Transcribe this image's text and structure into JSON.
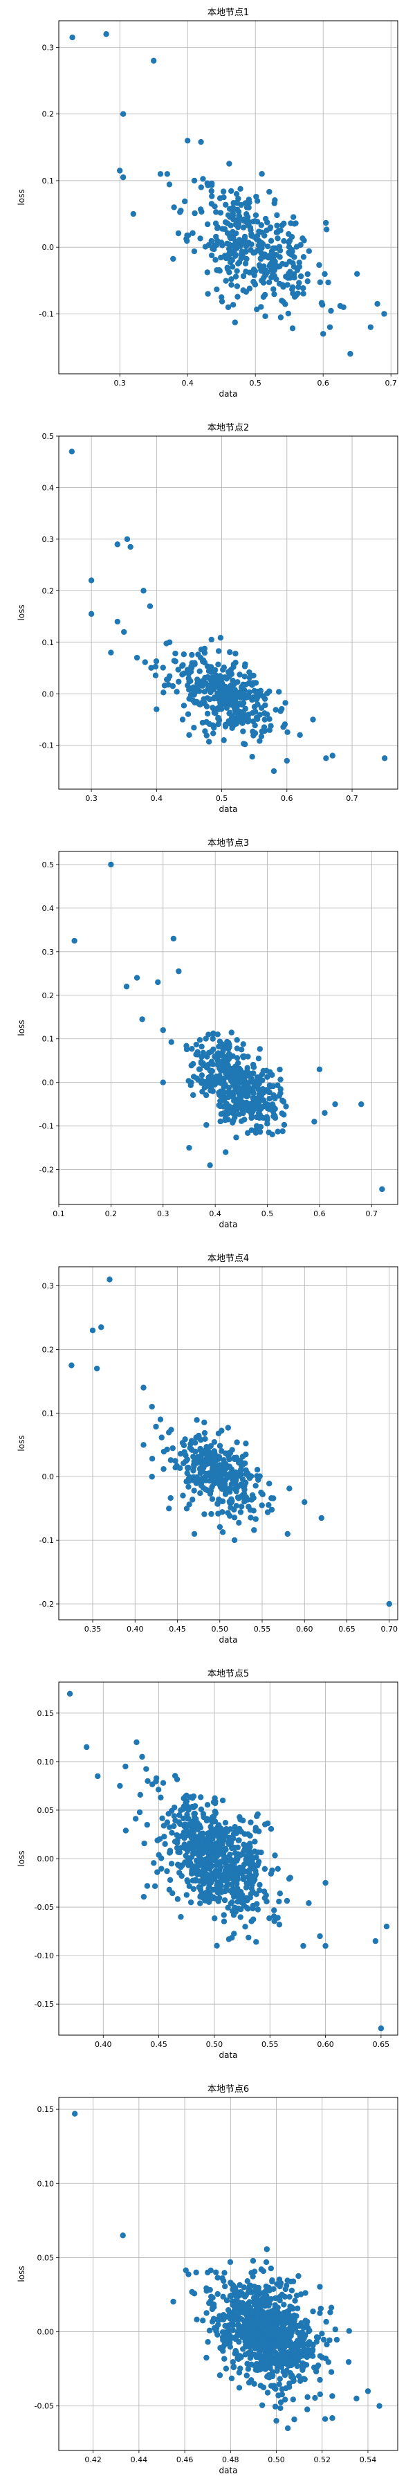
{
  "chart_data": [
    {
      "type": "scatter",
      "title": "本地节点1",
      "xlabel": "data",
      "ylabel": "loss",
      "xlim": [
        0.21,
        0.71
      ],
      "ylim": [
        -0.19,
        0.34
      ],
      "xticks": [
        0.3,
        0.4,
        0.5,
        0.6,
        0.7
      ],
      "yticks": [
        -0.1,
        0.0,
        0.1,
        0.2,
        0.3
      ],
      "tick_decimals": 1,
      "grid": true,
      "color": "#1f77b4",
      "outliers": [
        [
          0.23,
          0.315
        ],
        [
          0.28,
          0.32
        ],
        [
          0.35,
          0.28
        ],
        [
          0.305,
          0.2
        ],
        [
          0.4,
          0.16
        ],
        [
          0.3,
          0.115
        ],
        [
          0.305,
          0.105
        ],
        [
          0.32,
          0.05
        ],
        [
          0.36,
          0.11
        ],
        [
          0.37,
          0.11
        ],
        [
          0.41,
          0.1
        ],
        [
          0.42,
          0.09
        ],
        [
          0.38,
          0.06
        ],
        [
          0.39,
          0.055
        ],
        [
          0.43,
          -0.07
        ],
        [
          0.45,
          -0.075
        ],
        [
          0.46,
          -0.09
        ],
        [
          0.6,
          -0.13
        ],
        [
          0.61,
          -0.12
        ],
        [
          0.64,
          -0.16
        ],
        [
          0.68,
          -0.085
        ],
        [
          0.69,
          -0.1
        ],
        [
          0.67,
          -0.12
        ],
        [
          0.63,
          -0.09
        ],
        [
          0.65,
          -0.04
        ]
      ],
      "cluster": {
        "count": 360,
        "cx": 0.5,
        "cy": 0.0,
        "sx": 0.045,
        "sy": 0.042,
        "slope": -0.45,
        "seed": 11
      }
    },
    {
      "type": "scatter",
      "title": "本地节点2",
      "xlabel": "data",
      "ylabel": "loss",
      "xlim": [
        0.25,
        0.77
      ],
      "ylim": [
        -0.185,
        0.5
      ],
      "xticks": [
        0.3,
        0.4,
        0.5,
        0.6,
        0.7
      ],
      "yticks": [
        -0.1,
        0.0,
        0.1,
        0.2,
        0.3,
        0.4,
        0.5
      ],
      "tick_decimals": 1,
      "grid": true,
      "color": "#1f77b4",
      "outliers": [
        [
          0.27,
          0.47
        ],
        [
          0.355,
          0.3
        ],
        [
          0.36,
          0.285
        ],
        [
          0.34,
          0.29
        ],
        [
          0.3,
          0.22
        ],
        [
          0.38,
          0.2
        ],
        [
          0.39,
          0.17
        ],
        [
          0.3,
          0.155
        ],
        [
          0.34,
          0.14
        ],
        [
          0.35,
          0.12
        ],
        [
          0.33,
          0.08
        ],
        [
          0.37,
          0.07
        ],
        [
          0.42,
          0.1
        ],
        [
          0.4,
          -0.03
        ],
        [
          0.44,
          -0.05
        ],
        [
          0.45,
          -0.08
        ],
        [
          0.58,
          -0.15
        ],
        [
          0.6,
          -0.13
        ],
        [
          0.66,
          -0.125
        ],
        [
          0.67,
          -0.12
        ],
        [
          0.75,
          -0.125
        ],
        [
          0.62,
          -0.08
        ],
        [
          0.64,
          -0.05
        ]
      ],
      "cluster": {
        "count": 360,
        "cx": 0.5,
        "cy": 0.0,
        "sx": 0.04,
        "sy": 0.035,
        "slope": -0.55,
        "seed": 23
      }
    },
    {
      "type": "scatter",
      "title": "本地节点3",
      "xlabel": "data",
      "ylabel": "loss",
      "xlim": [
        0.1,
        0.75
      ],
      "ylim": [
        -0.28,
        0.53
      ],
      "xticks": [
        0.1,
        0.2,
        0.3,
        0.4,
        0.5,
        0.6,
        0.7
      ],
      "yticks": [
        -0.2,
        -0.1,
        0.0,
        0.1,
        0.2,
        0.3,
        0.4,
        0.5
      ],
      "tick_decimals": 1,
      "grid": true,
      "color": "#1f77b4",
      "outliers": [
        [
          0.2,
          0.5
        ],
        [
          0.13,
          0.325
        ],
        [
          0.32,
          0.33
        ],
        [
          0.33,
          0.255
        ],
        [
          0.25,
          0.24
        ],
        [
          0.23,
          0.22
        ],
        [
          0.29,
          0.23
        ],
        [
          0.26,
          0.145
        ],
        [
          0.3,
          0.12
        ],
        [
          0.3,
          0.0
        ],
        [
          0.35,
          -0.15
        ],
        [
          0.39,
          -0.19
        ],
        [
          0.42,
          -0.16
        ],
        [
          0.72,
          -0.245
        ],
        [
          0.68,
          -0.05
        ],
        [
          0.63,
          -0.05
        ],
        [
          0.61,
          -0.07
        ],
        [
          0.59,
          -0.09
        ],
        [
          0.6,
          0.03
        ]
      ],
      "cluster": {
        "count": 420,
        "cx": 0.44,
        "cy": 0.0,
        "sx": 0.04,
        "sy": 0.045,
        "slope": -0.6,
        "seed": 37
      }
    },
    {
      "type": "scatter",
      "title": "本地节点4",
      "xlabel": "data",
      "ylabel": "loss",
      "xlim": [
        0.31,
        0.71
      ],
      "ylim": [
        -0.225,
        0.33
      ],
      "xticks": [
        0.35,
        0.4,
        0.45,
        0.5,
        0.55,
        0.6,
        0.65,
        0.7
      ],
      "yticks": [
        -0.2,
        -0.1,
        0.0,
        0.1,
        0.2,
        0.3
      ],
      "tick_decimals": 2,
      "grid": true,
      "color": "#1f77b4",
      "outliers": [
        [
          0.325,
          0.175
        ],
        [
          0.35,
          0.23
        ],
        [
          0.36,
          0.235
        ],
        [
          0.355,
          0.17
        ],
        [
          0.37,
          0.31
        ],
        [
          0.41,
          0.14
        ],
        [
          0.42,
          0.11
        ],
        [
          0.43,
          0.09
        ],
        [
          0.41,
          0.05
        ],
        [
          0.42,
          0.0
        ],
        [
          0.44,
          -0.05
        ],
        [
          0.47,
          -0.09
        ],
        [
          0.62,
          -0.065
        ],
        [
          0.7,
          -0.2
        ],
        [
          0.58,
          -0.09
        ],
        [
          0.6,
          -0.04
        ]
      ],
      "cluster": {
        "count": 320,
        "cx": 0.5,
        "cy": 0.0,
        "sx": 0.03,
        "sy": 0.03,
        "slope": -0.55,
        "seed": 53
      }
    },
    {
      "type": "scatter",
      "title": "本地节点5",
      "xlabel": "data",
      "ylabel": "loss",
      "xlim": [
        0.36,
        0.665
      ],
      "ylim": [
        -0.182,
        0.182
      ],
      "xticks": [
        0.4,
        0.45,
        0.5,
        0.55,
        0.6,
        0.65
      ],
      "yticks": [
        -0.15,
        -0.1,
        -0.05,
        0.0,
        0.05,
        0.1,
        0.15
      ],
      "tick_decimals": 2,
      "grid": true,
      "color": "#1f77b4",
      "outliers": [
        [
          0.37,
          0.17
        ],
        [
          0.385,
          0.115
        ],
        [
          0.395,
          0.085
        ],
        [
          0.43,
          0.12
        ],
        [
          0.435,
          0.105
        ],
        [
          0.42,
          0.095
        ],
        [
          0.415,
          0.075
        ],
        [
          0.44,
          0.08
        ],
        [
          0.6,
          -0.09
        ],
        [
          0.595,
          -0.08
        ],
        [
          0.6,
          -0.025
        ],
        [
          0.645,
          -0.085
        ],
        [
          0.655,
          -0.07
        ],
        [
          0.65,
          -0.175
        ],
        [
          0.58,
          -0.09
        ]
      ],
      "cluster": {
        "count": 700,
        "cx": 0.5,
        "cy": 0.0,
        "sx": 0.025,
        "sy": 0.028,
        "slope": -0.55,
        "seed": 71
      }
    },
    {
      "type": "scatter",
      "title": "本地节点6",
      "xlabel": "data",
      "ylabel": "loss",
      "xlim": [
        0.405,
        0.553
      ],
      "ylim": [
        -0.08,
        0.158
      ],
      "xticks": [
        0.42,
        0.44,
        0.46,
        0.48,
        0.5,
        0.52,
        0.54
      ],
      "yticks": [
        -0.05,
        0.0,
        0.05,
        0.1,
        0.15
      ],
      "tick_decimals": 2,
      "grid": true,
      "color": "#1f77b4",
      "outliers": [
        [
          0.412,
          0.147
        ],
        [
          0.433,
          0.065
        ],
        [
          0.465,
          0.04
        ],
        [
          0.47,
          0.04
        ],
        [
          0.54,
          -0.04
        ],
        [
          0.545,
          -0.05
        ],
        [
          0.535,
          -0.045
        ],
        [
          0.5,
          -0.06
        ],
        [
          0.505,
          -0.065
        ]
      ],
      "cluster": {
        "count": 900,
        "cx": 0.495,
        "cy": 0.0,
        "sx": 0.012,
        "sy": 0.017,
        "slope": -0.6,
        "seed": 97
      }
    }
  ]
}
